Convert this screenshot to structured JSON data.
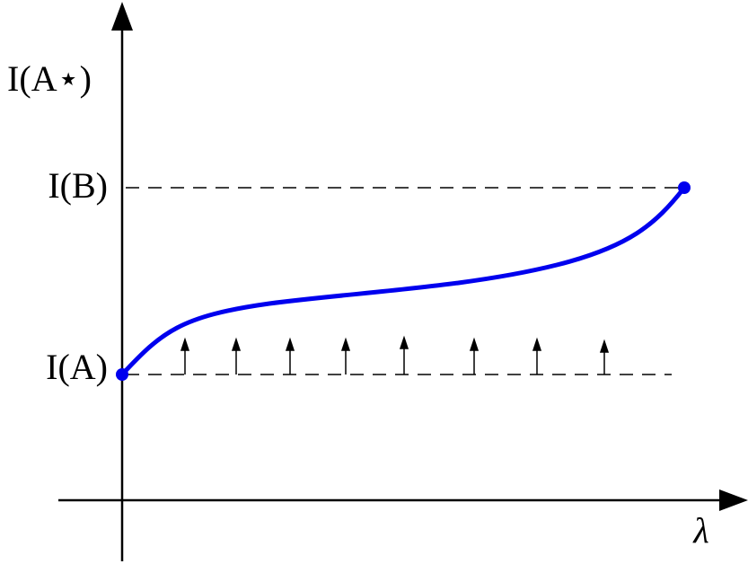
{
  "y_axis_label": "I(A⋆)",
  "x_axis_label": "λ",
  "levels": {
    "upper": "I(B)",
    "lower": "I(A)"
  }
}
